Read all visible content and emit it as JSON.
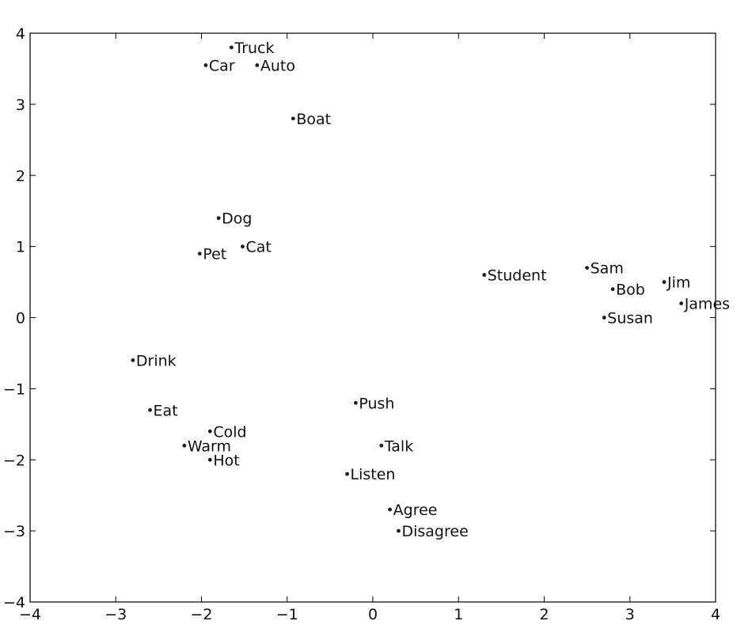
{
  "chart_data": {
    "type": "scatter",
    "title": "",
    "xlabel": "",
    "ylabel": "",
    "xlim": [
      -4,
      4
    ],
    "ylim": [
      -4,
      4
    ],
    "xticks": [
      -4,
      -3,
      -2,
      -1,
      0,
      1,
      2,
      3,
      4
    ],
    "yticks": [
      -4,
      -3,
      -2,
      -1,
      0,
      1,
      2,
      3,
      4
    ],
    "xtick_labels": [
      "−4",
      "−3",
      "−2",
      "−1",
      "0",
      "1",
      "2",
      "3",
      "4"
    ],
    "ytick_labels": [
      "−4",
      "−3",
      "−2",
      "−1",
      "0",
      "1",
      "2",
      "3",
      "4"
    ],
    "grid": false,
    "point_color": "#1a1a3a",
    "points": [
      {
        "label": "Truck",
        "x": -1.65,
        "y": 3.8
      },
      {
        "label": "Car",
        "x": -1.95,
        "y": 3.55
      },
      {
        "label": "Auto",
        "x": -1.35,
        "y": 3.55
      },
      {
        "label": "Boat",
        "x": -0.93,
        "y": 2.8
      },
      {
        "label": "Dog",
        "x": -1.8,
        "y": 1.4
      },
      {
        "label": "Cat",
        "x": -1.52,
        "y": 1.0
      },
      {
        "label": "Pet",
        "x": -2.02,
        "y": 0.9
      },
      {
        "label": "Student",
        "x": 1.3,
        "y": 0.6
      },
      {
        "label": "Sam",
        "x": 2.5,
        "y": 0.7
      },
      {
        "label": "Bob",
        "x": 2.8,
        "y": 0.4
      },
      {
        "label": "Jim",
        "x": 3.4,
        "y": 0.5
      },
      {
        "label": "James",
        "x": 3.6,
        "y": 0.2
      },
      {
        "label": "Susan",
        "x": 2.7,
        "y": 0.0
      },
      {
        "label": "Drink",
        "x": -2.8,
        "y": -0.6
      },
      {
        "label": "Eat",
        "x": -2.6,
        "y": -1.3
      },
      {
        "label": "Cold",
        "x": -1.9,
        "y": -1.6
      },
      {
        "label": "Warm",
        "x": -2.2,
        "y": -1.8
      },
      {
        "label": "Hot",
        "x": -1.9,
        "y": -2.0
      },
      {
        "label": "Push",
        "x": -0.2,
        "y": -1.2
      },
      {
        "label": "Talk",
        "x": 0.1,
        "y": -1.8
      },
      {
        "label": "Listen",
        "x": -0.3,
        "y": -2.2
      },
      {
        "label": "Agree",
        "x": 0.2,
        "y": -2.7
      },
      {
        "label": "Disagree",
        "x": 0.3,
        "y": -3.0
      }
    ]
  }
}
